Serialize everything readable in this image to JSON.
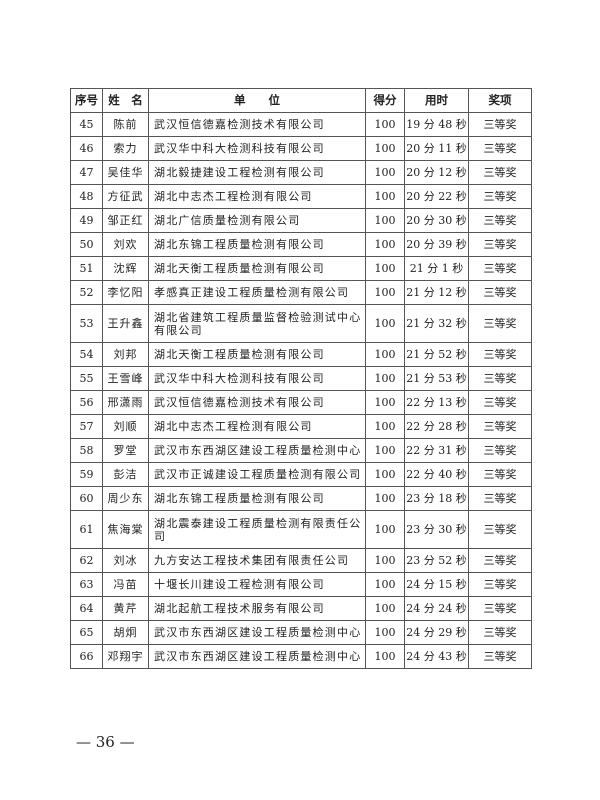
{
  "table": {
    "headers": [
      "序号",
      "姓　名",
      "单　　位",
      "得分",
      "用时",
      "奖项"
    ],
    "rows": [
      [
        "45",
        "陈前",
        "武汉恒信德嘉检测技术有限公司",
        "100",
        "19 分 48 秒",
        "三等奖"
      ],
      [
        "46",
        "索力",
        "武汉华中科大检测科技有限公司",
        "100",
        "20 分 11 秒",
        "三等奖"
      ],
      [
        "47",
        "吴佳华",
        "湖北毅捷建设工程检测有限公司",
        "100",
        "20 分 12 秒",
        "三等奖"
      ],
      [
        "48",
        "方征武",
        "湖北中志杰工程检测有限公司",
        "100",
        "20 分 22 秒",
        "三等奖"
      ],
      [
        "49",
        "邹正红",
        "湖北广信质量检测有限公司",
        "100",
        "20 分 30 秒",
        "三等奖"
      ],
      [
        "50",
        "刘欢",
        "湖北东锦工程质量检测有限公司",
        "100",
        "20 分 39 秒",
        "三等奖"
      ],
      [
        "51",
        "沈辉",
        "湖北天衡工程质量检测有限公司",
        "100",
        "21 分 1 秒",
        "三等奖"
      ],
      [
        "52",
        "李忆阳",
        "孝感真正建设工程质量检测有限公司",
        "100",
        "21 分 12 秒",
        "三等奖"
      ],
      [
        "53",
        "王升鑫",
        "湖北省建筑工程质量监督检验测试中心有限公司",
        "100",
        "21 分 32 秒",
        "三等奖"
      ],
      [
        "54",
        "刘邦",
        "湖北天衡工程质量检测有限公司",
        "100",
        "21 分 52 秒",
        "三等奖"
      ],
      [
        "55",
        "王雪峰",
        "武汉华中科大检测科技有限公司",
        "100",
        "21 分 53 秒",
        "三等奖"
      ],
      [
        "56",
        "邢潇雨",
        "武汉恒信德嘉检测技术有限公司",
        "100",
        "22 分 13 秒",
        "三等奖"
      ],
      [
        "57",
        "刘顺",
        "湖北中志杰工程检测有限公司",
        "100",
        "22 分 28 秒",
        "三等奖"
      ],
      [
        "58",
        "罗堂",
        "武汉市东西湖区建设工程质量检测中心",
        "100",
        "22 分 31 秒",
        "三等奖"
      ],
      [
        "59",
        "彭洁",
        "武汉市正诚建设工程质量检测有限公司",
        "100",
        "22 分 40 秒",
        "三等奖"
      ],
      [
        "60",
        "周少东",
        "湖北东锦工程质量检测有限公司",
        "100",
        "23 分 18 秒",
        "三等奖"
      ],
      [
        "61",
        "焦海棠",
        "湖北震泰建设工程质量检测有限责任公司",
        "100",
        "23 分 30 秒",
        "三等奖"
      ],
      [
        "62",
        "刘冰",
        "九方安达工程技术集团有限责任公司",
        "100",
        "23 分 52 秒",
        "三等奖"
      ],
      [
        "63",
        "冯苗",
        "十堰长川建设工程检测有限公司",
        "100",
        "24 分 15 秒",
        "三等奖"
      ],
      [
        "64",
        "黄芹",
        "湖北起航工程技术服务有限公司",
        "100",
        "24 分 24 秒",
        "三等奖"
      ],
      [
        "65",
        "胡炯",
        "武汉市东西湖区建设工程质量检测中心",
        "100",
        "24 分 29 秒",
        "三等奖"
      ],
      [
        "66",
        "邓翔宇",
        "武汉市东西湖区建设工程质量检测中心",
        "100",
        "24 分 43 秒",
        "三等奖"
      ]
    ]
  },
  "page_number": "— 36 —"
}
